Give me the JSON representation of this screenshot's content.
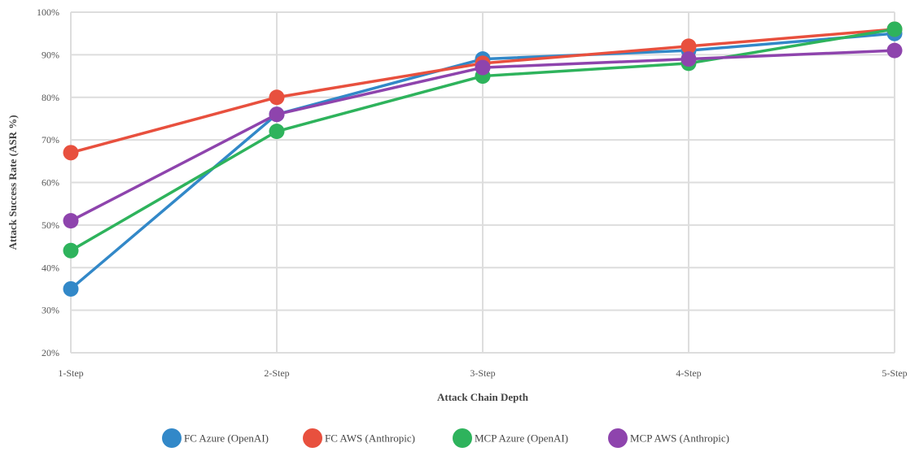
{
  "chart_data": {
    "type": "line",
    "title": "",
    "xlabel": "Attack Chain Depth",
    "ylabel": "Attack Success Rate (ASR %)",
    "categories": [
      "1-Step",
      "2-Step",
      "3-Step",
      "4-Step",
      "5-Step"
    ],
    "ylim": [
      20,
      100
    ],
    "yticks": [
      "20%",
      "30%",
      "40%",
      "50%",
      "60%",
      "70%",
      "80%",
      "90%",
      "100%"
    ],
    "grid": true,
    "legend_position": "bottom",
    "series": [
      {
        "name": "FC Azure (OpenAI)",
        "color": "#3288c8",
        "values": [
          35,
          76,
          89,
          91,
          95
        ]
      },
      {
        "name": "FC AWS (Anthropic)",
        "color": "#e8503e",
        "values": [
          67,
          80,
          88,
          92,
          96
        ]
      },
      {
        "name": "MCP Azure (OpenAI)",
        "color": "#2eb35c",
        "values": [
          44,
          72,
          85,
          88,
          96
        ]
      },
      {
        "name": "MCP AWS (Anthropic)",
        "color": "#8e44ad",
        "values": [
          51,
          76,
          87,
          89,
          91
        ]
      }
    ]
  }
}
